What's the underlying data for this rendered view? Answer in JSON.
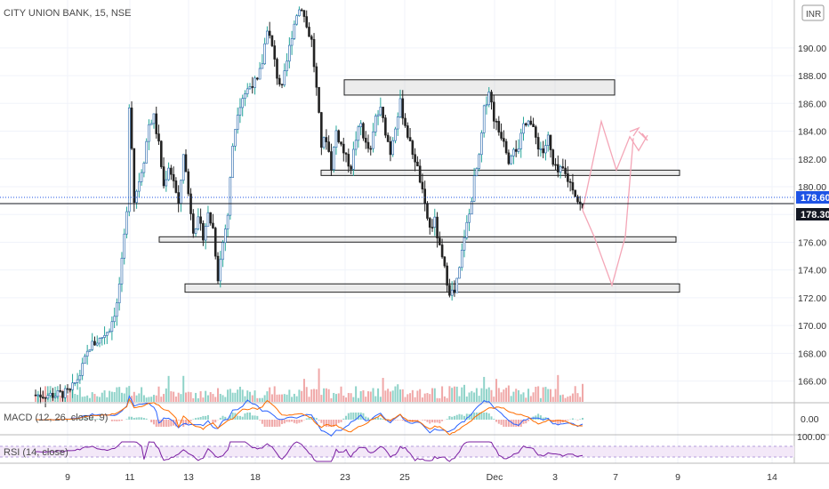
{
  "header": {
    "title": "CITY UNION BANK, 15, NSE",
    "currency_badge": "INR"
  },
  "colors": {
    "up": "#26a69a",
    "up_body": "#1e5fa8",
    "down": "#222222",
    "down_vol": "#f0a8a8",
    "up_vol": "#8fd3c9",
    "macd": "#2962ff",
    "signal": "#ff6d00",
    "rsi": "#7b1fa2",
    "arrow": "#f4a6b7",
    "price_badge_blue": "#1e53e5",
    "price_badge_black": "#131722"
  },
  "price_axis": {
    "min": 164.5,
    "max": 193,
    "ticks": [
      "190.00",
      "188.00",
      "186.00",
      "184.00",
      "182.00",
      "180.00",
      "178.00",
      "176.00",
      "174.00",
      "172.00",
      "170.00",
      "168.00",
      "166.00"
    ],
    "tick_values": [
      190,
      188,
      186,
      184,
      182,
      180,
      178,
      176,
      174,
      172,
      170,
      168,
      166
    ],
    "badge_last": "178.60",
    "badge_close": "178.30"
  },
  "time_axis": {
    "labels": [
      "9",
      "11",
      "13",
      "18",
      "23",
      "25",
      "Dec",
      "3",
      "7",
      "9",
      "14"
    ]
  },
  "macd_pane": {
    "label": "MACD (12, 26, close, 9)",
    "axis_value": "0.00"
  },
  "rsi_pane": {
    "label": "RSI (14, close)",
    "axis_value": "100.00"
  },
  "chart_data": {
    "type": "candlestick",
    "title": "CITY UNION BANK, 15, NSE",
    "ylim": [
      164.5,
      193
    ],
    "x_tick_labels": [
      "9",
      "11",
      "13",
      "18",
      "23",
      "25",
      "Dec",
      "3",
      "7",
      "9",
      "14"
    ],
    "y_tick_labels": [
      "190.00",
      "188.00",
      "186.00",
      "184.00",
      "182.00",
      "180.00",
      "178.00",
      "176.00",
      "174.00",
      "172.00",
      "170.00",
      "168.00",
      "166.00"
    ],
    "price_path": [
      [
        0,
        165.0
      ],
      [
        8,
        165.0
      ],
      [
        14,
        165.2
      ],
      [
        18,
        166.5
      ],
      [
        22,
        168.5
      ],
      [
        26,
        169.0
      ],
      [
        30,
        169.8
      ],
      [
        33,
        171.5
      ],
      [
        35,
        174.5
      ],
      [
        37,
        178.0
      ],
      [
        38,
        186.0
      ],
      [
        39,
        183.0
      ],
      [
        40,
        179.0
      ],
      [
        42,
        180.5
      ],
      [
        44,
        182.0
      ],
      [
        46,
        184.5
      ],
      [
        48,
        185.0
      ],
      [
        50,
        183.0
      ],
      [
        52,
        180.0
      ],
      [
        54,
        181.5
      ],
      [
        56,
        180.5
      ],
      [
        58,
        178.5
      ],
      [
        60,
        182.5
      ],
      [
        62,
        179.5
      ],
      [
        64,
        177.0
      ],
      [
        66,
        177.5
      ],
      [
        68,
        176.5
      ],
      [
        70,
        178.0
      ],
      [
        72,
        177.0
      ],
      [
        74,
        173.5
      ],
      [
        76,
        176.0
      ],
      [
        78,
        178.0
      ],
      [
        80,
        183.0
      ],
      [
        82,
        185.5
      ],
      [
        84,
        186.5
      ],
      [
        86,
        187.0
      ],
      [
        88,
        187.5
      ],
      [
        90,
        187.5
      ],
      [
        92,
        189.0
      ],
      [
        94,
        191.5
      ],
      [
        96,
        190.0
      ],
      [
        98,
        188.0
      ],
      [
        100,
        187.0
      ],
      [
        102,
        189.0
      ],
      [
        104,
        191.0
      ],
      [
        106,
        192.5
      ],
      [
        108,
        193.0
      ],
      [
        110,
        191.5
      ],
      [
        112,
        190.5
      ],
      [
        114,
        187.0
      ],
      [
        116,
        183.0
      ],
      [
        118,
        183.5
      ],
      [
        120,
        181.5
      ],
      [
        122,
        184.0
      ],
      [
        124,
        183.0
      ],
      [
        126,
        182.0
      ],
      [
        128,
        181.5
      ],
      [
        130,
        183.5
      ],
      [
        132,
        184.5
      ],
      [
        134,
        183.0
      ],
      [
        136,
        182.5
      ],
      [
        138,
        185.0
      ],
      [
        140,
        185.5
      ],
      [
        142,
        184.0
      ],
      [
        144,
        182.5
      ],
      [
        146,
        184.5
      ],
      [
        148,
        186.0
      ],
      [
        150,
        184.5
      ],
      [
        152,
        183.0
      ],
      [
        154,
        182.0
      ],
      [
        156,
        180.5
      ],
      [
        158,
        178.5
      ],
      [
        160,
        177.0
      ],
      [
        162,
        177.5
      ],
      [
        164,
        175.5
      ],
      [
        166,
        174.0
      ],
      [
        168,
        172.5
      ],
      [
        170,
        172.3
      ],
      [
        172,
        174.0
      ],
      [
        174,
        176.5
      ],
      [
        176,
        178.0
      ],
      [
        178,
        180.5
      ],
      [
        180,
        182.0
      ],
      [
        182,
        185.5
      ],
      [
        184,
        187.0
      ],
      [
        186,
        185.0
      ],
      [
        188,
        184.0
      ],
      [
        190,
        183.5
      ],
      [
        192,
        182.0
      ],
      [
        194,
        183.0
      ],
      [
        196,
        182.5
      ],
      [
        198,
        184.5
      ],
      [
        200,
        185.0
      ],
      [
        202,
        184.0
      ],
      [
        204,
        183.0
      ],
      [
        206,
        182.5
      ],
      [
        208,
        183.5
      ],
      [
        210,
        181.5
      ],
      [
        212,
        181.0
      ],
      [
        214,
        181.2
      ],
      [
        216,
        180.5
      ],
      [
        218,
        180.0
      ],
      [
        220,
        179.0
      ],
      [
        222,
        178.3
      ]
    ],
    "zones": [
      {
        "name": "upper-resistance",
        "low": 186.6,
        "high": 187.7
      },
      {
        "name": "mid-support",
        "low": 180.9,
        "high": 181.1
      },
      {
        "name": "lower-support",
        "low": 176.1,
        "high": 176.3
      },
      {
        "name": "bottom-support",
        "low": 172.4,
        "high": 173.0
      }
    ],
    "projections": [
      {
        "name": "bullish-path",
        "points": [
          [
            0,
            178.3
          ],
          [
            1,
            184.7
          ],
          [
            2,
            181.2
          ],
          [
            3,
            183.6
          ],
          [
            4,
            182.6
          ],
          [
            4.6,
            183.7
          ]
        ]
      },
      {
        "name": "bearish-path",
        "points": [
          [
            0,
            178.3
          ],
          [
            1,
            176.4
          ],
          [
            2,
            172.9
          ],
          [
            3,
            176.4
          ],
          [
            4,
            183.5
          ]
        ]
      }
    ],
    "last_price": 178.6,
    "close_price": 178.3
  }
}
